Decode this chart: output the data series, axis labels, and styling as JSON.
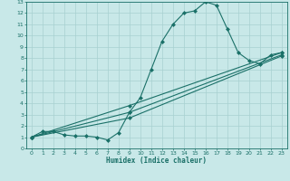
{
  "xlabel": "Humidex (Indice chaleur)",
  "background_color": "#c8e8e8",
  "grid_color": "#a8d0d0",
  "line_color": "#1a7068",
  "xlim": [
    -0.5,
    23.5
  ],
  "ylim": [
    0,
    13
  ],
  "xticks": [
    0,
    1,
    2,
    3,
    4,
    5,
    6,
    7,
    8,
    9,
    10,
    11,
    12,
    13,
    14,
    15,
    16,
    17,
    18,
    19,
    20,
    21,
    22,
    23
  ],
  "yticks": [
    0,
    1,
    2,
    3,
    4,
    5,
    6,
    7,
    8,
    9,
    10,
    11,
    12,
    13
  ],
  "line1_x": [
    0,
    1,
    2,
    3,
    4,
    5,
    6,
    7,
    8,
    9,
    10,
    11,
    12,
    13,
    14,
    15,
    16,
    17,
    18,
    19,
    20,
    21,
    22,
    23
  ],
  "line1_y": [
    1,
    1.5,
    1.5,
    1.2,
    1.1,
    1.1,
    1.0,
    0.75,
    1.4,
    3.2,
    4.5,
    7.0,
    9.5,
    11.0,
    12.0,
    12.2,
    13.0,
    12.7,
    10.6,
    8.5,
    7.8,
    7.5,
    8.3,
    8.5
  ],
  "line2_x": [
    0,
    9,
    23
  ],
  "line2_y": [
    1,
    3.8,
    8.5
  ],
  "line3_x": [
    0,
    9,
    23
  ],
  "line3_y": [
    1,
    3.2,
    8.3
  ],
  "line4_x": [
    0,
    9,
    23
  ],
  "line4_y": [
    1,
    2.7,
    8.2
  ]
}
